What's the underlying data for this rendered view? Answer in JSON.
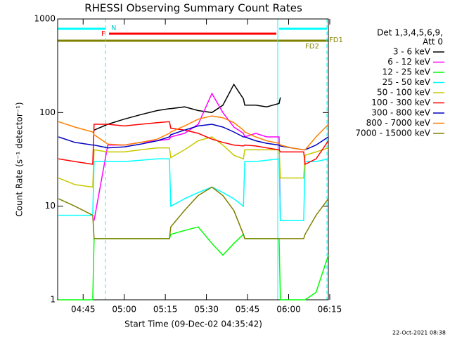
{
  "chart_data": {
    "type": "line",
    "title": "RHESSI Observing Summary Count Rates",
    "xlabel": "Start Time (09-Dec-02 04:35:42)",
    "ylabel": "Count Rate (s⁻¹ detector⁻¹)",
    "legend_title": [
      "Det 1,3,4,5,6,9,",
      "Att 0"
    ],
    "legend": "right",
    "log_y": true,
    "footer": "22-Oct-2021 08:38",
    "flags": [
      "N",
      "F",
      "FD1",
      "FD2"
    ],
    "xlim": [
      275.7,
      374.5
    ],
    "xticks": [
      {
        "value": 285,
        "label": "04:45"
      },
      {
        "value": 300,
        "label": "05:00"
      },
      {
        "value": 315,
        "label": "05:15"
      },
      {
        "value": 330,
        "label": "05:30"
      },
      {
        "value": 345,
        "label": "05:45"
      },
      {
        "value": 360,
        "label": "06:00"
      },
      {
        "value": 375,
        "label": "06:15"
      }
    ],
    "ylim": [
      1,
      1000
    ],
    "yticks": [
      1,
      10,
      100,
      1000
    ],
    "x": [
      276,
      282,
      288.5,
      289,
      294,
      300,
      306,
      312,
      316.5,
      317,
      322,
      327,
      332,
      336,
      340,
      343.5,
      344,
      348,
      352,
      356.5,
      357,
      361,
      365.5,
      366,
      370,
      374.5
    ],
    "series": [
      {
        "name": "3 - 6 keV",
        "color": "#000000",
        "values": [
          null,
          null,
          null,
          65,
          75,
          85,
          95,
          105,
          110,
          110,
          115,
          105,
          100,
          120,
          200,
          140,
          120,
          120,
          115,
          125,
          145,
          null,
          null,
          null,
          null,
          null
        ]
      },
      {
        "name": "6 - 12 keV",
        "color": "#ff00ff",
        "values": [
          null,
          null,
          null,
          7,
          45,
          45,
          48,
          50,
          52,
          55,
          60,
          75,
          160,
          100,
          70,
          60,
          55,
          60,
          55,
          55,
          7,
          7,
          7,
          null,
          null,
          null
        ]
      },
      {
        "name": "12 - 25 keV",
        "color": "#00ff00",
        "values": [
          1,
          1,
          1,
          4.5,
          4.5,
          4.5,
          4.5,
          4.5,
          4.5,
          5,
          5.5,
          6,
          4,
          3,
          4,
          5,
          4.5,
          4.5,
          4.5,
          4.5,
          1,
          1,
          1,
          1,
          1.2,
          3
        ]
      },
      {
        "name": "25 - 50 keV",
        "color": "#00ffff",
        "values": [
          8,
          8,
          8,
          30,
          30,
          30,
          31,
          32,
          32,
          10,
          12,
          14,
          16,
          14,
          12,
          10,
          30,
          30,
          31,
          32,
          7,
          7,
          7,
          30,
          30,
          32
        ]
      },
      {
        "name": "50 - 100 keV",
        "color": "#c8c800",
        "values": [
          20,
          17,
          16,
          40,
          38,
          38,
          40,
          42,
          42,
          33,
          40,
          50,
          55,
          45,
          35,
          32,
          40,
          40,
          40,
          40,
          20,
          20,
          20,
          35,
          38,
          42
        ]
      },
      {
        "name": "100 - 300 keV",
        "color": "#ff0000",
        "values": [
          32,
          30,
          28,
          75,
          75,
          72,
          75,
          78,
          80,
          68,
          65,
          60,
          52,
          48,
          45,
          44,
          45,
          44,
          42,
          40,
          38,
          38,
          38,
          28,
          32,
          50
        ]
      },
      {
        "name": "300 - 800 keV",
        "color": "#0000c0",
        "values": [
          55,
          48,
          45,
          45,
          42,
          43,
          46,
          50,
          55,
          58,
          65,
          72,
          75,
          70,
          62,
          55,
          55,
          50,
          47,
          45,
          44,
          42,
          40,
          40,
          45,
          55
        ]
      },
      {
        "name": "800 - 7000 keV",
        "color": "#ff8000",
        "values": [
          80,
          70,
          62,
          58,
          46,
          45,
          48,
          52,
          60,
          62,
          72,
          85,
          92,
          88,
          78,
          65,
          62,
          55,
          50,
          47,
          45,
          42,
          40,
          40,
          55,
          75
        ]
      },
      {
        "name": "7000 - 15000 keV",
        "color": "#808000",
        "values": [
          12,
          10,
          8,
          4.5,
          4.5,
          4.5,
          4.5,
          4.5,
          4.5,
          6,
          9,
          13,
          16,
          13,
          9,
          5,
          4.5,
          4.5,
          4.5,
          4.5,
          4.5,
          4.5,
          4.5,
          5,
          8,
          12
        ]
      }
    ]
  }
}
